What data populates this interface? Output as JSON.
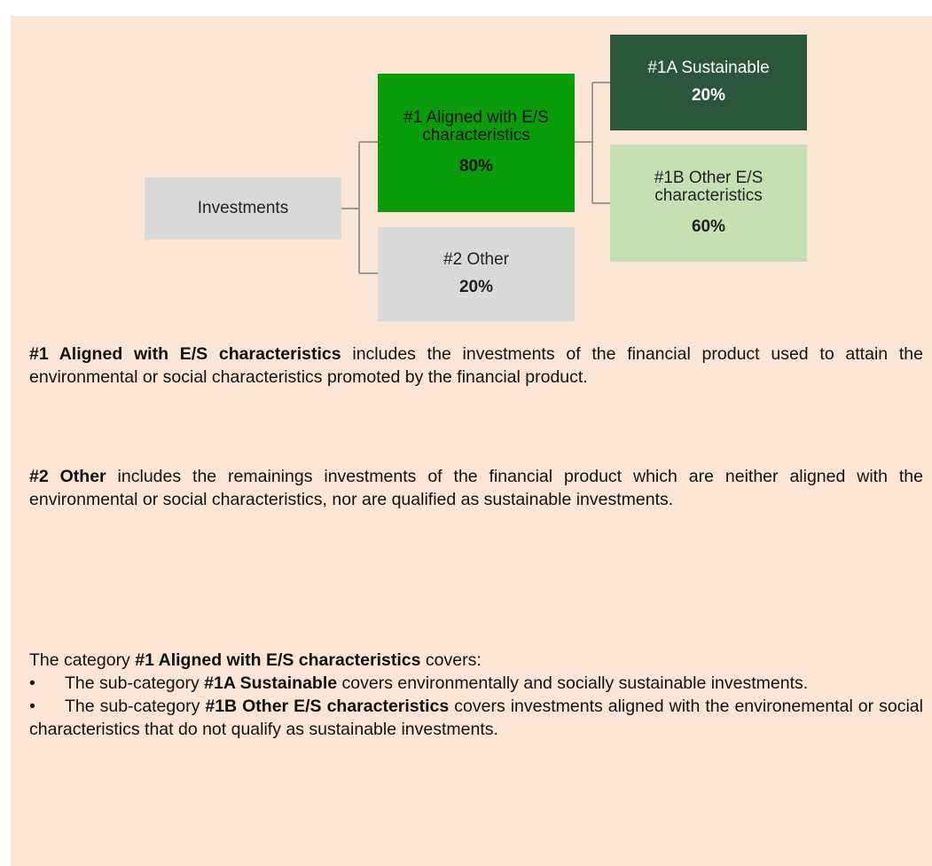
{
  "nodes": [
    {
      "label": "Investments"
    },
    {
      "label": "#1 Aligned with E/S characteristics",
      "value": "80%"
    },
    {
      "label": "#2 Other",
      "value": "20%"
    },
    {
      "label": "#1A Sustainable",
      "value": "20%"
    },
    {
      "label": "#1B Other E/S characteristics",
      "value": "60%"
    }
  ],
  "paragraphs": [
    [
      {
        "text": "#1 Aligned with E/S characteristics",
        "bold": true
      },
      {
        "text": " includes the investments of the financial product used to attain the environmental or social characteristics promoted by the financial product."
      }
    ],
    [
      {
        "text": "#2 Other",
        "bold": true
      },
      {
        "text": " includes the remainings investments of the financial product which are neither aligned with the environmental or social characteristics, nor are qualified as sustainable investments."
      }
    ]
  ],
  "category": {
    "intro": [
      {
        "text": "The category "
      },
      {
        "text": "#1 Aligned with E/S characteristics",
        "bold": true
      },
      {
        "text": " covers:"
      }
    ],
    "bullets": [
      [
        {
          "text": "The sub-category "
        },
        {
          "text": "#1A Sustainable",
          "bold": true
        },
        {
          "text": " covers environmentally and socially sustainable investments."
        }
      ],
      [
        {
          "text": "The sub-category "
        },
        {
          "text": "#1B Other E/S characteristics",
          "bold": true
        },
        {
          "text": " covers investments aligned with the environemental or social characteristics that do not qualify as sustainable investments."
        }
      ]
    ]
  }
}
